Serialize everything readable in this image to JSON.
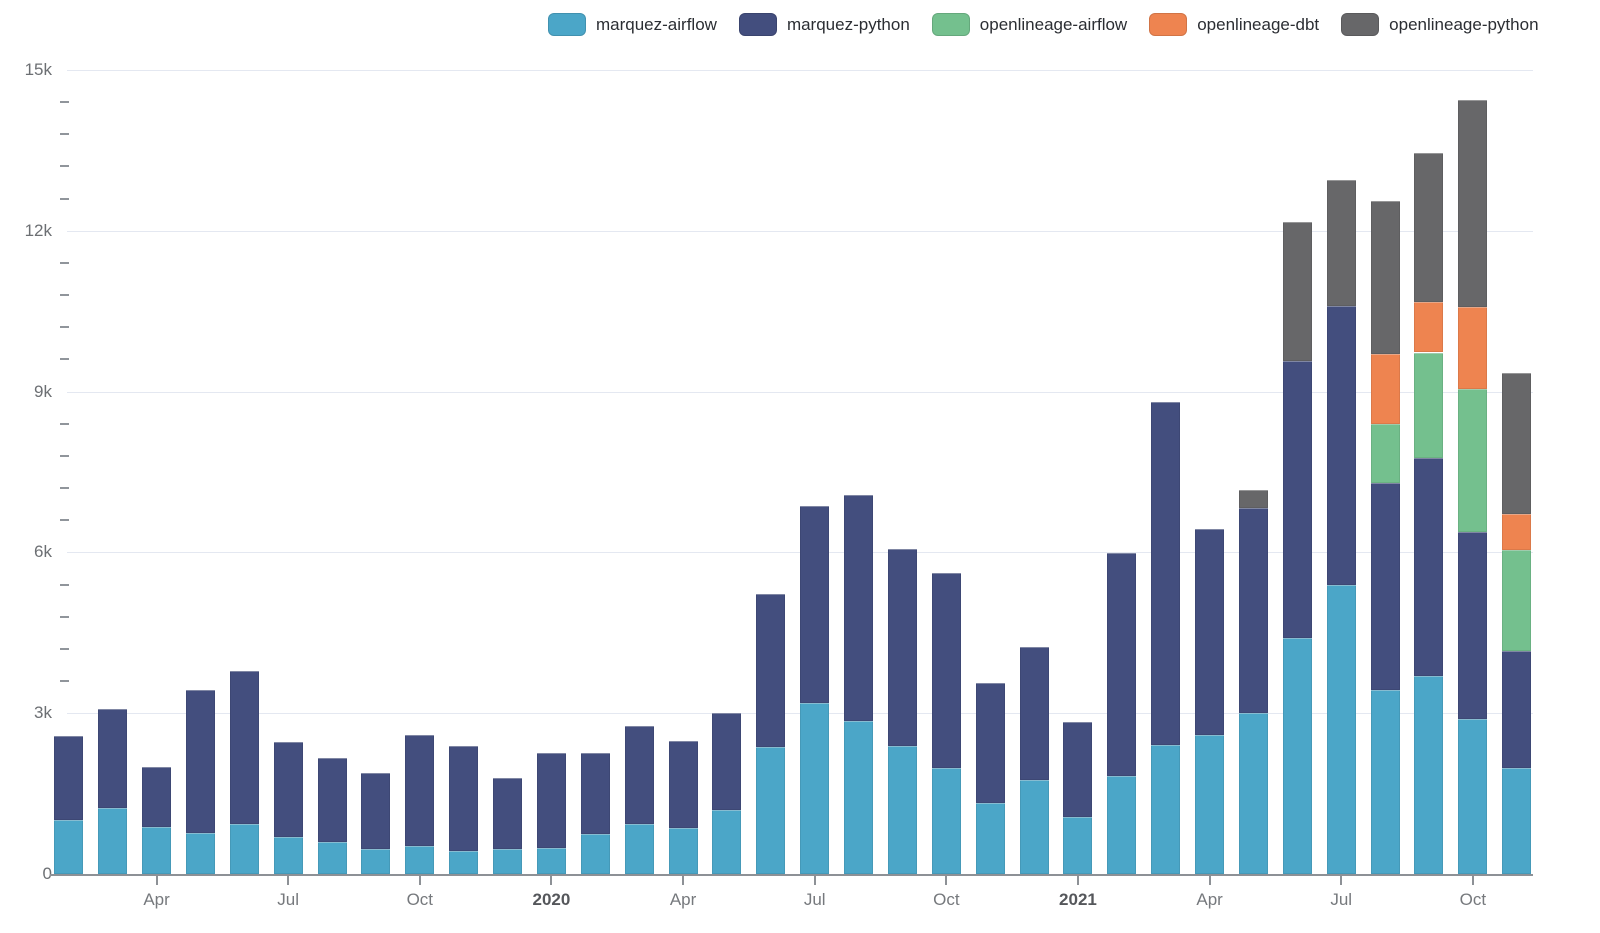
{
  "legend": {
    "items": [
      {
        "label": "marquez-airflow",
        "color": "#4ba6c8"
      },
      {
        "label": "marquez-python",
        "color": "#434e7e"
      },
      {
        "label": "openlineage-airflow",
        "color": "#74c08e"
      },
      {
        "label": "openlineage-dbt",
        "color": "#ee8450"
      },
      {
        "label": "openlineage-python",
        "color": "#676769"
      }
    ]
  },
  "chart_data": {
    "type": "bar",
    "stacked": true,
    "title": "",
    "xlabel": "",
    "ylabel": "",
    "ylim": [
      0,
      15000
    ],
    "grid": true,
    "legend_position": "top",
    "y_ticks": [
      {
        "value": 0,
        "label": "0"
      },
      {
        "value": 3000,
        "label": "3k"
      },
      {
        "value": 6000,
        "label": "6k"
      },
      {
        "value": 9000,
        "label": "9k"
      },
      {
        "value": 12000,
        "label": "12k"
      },
      {
        "value": 15000,
        "label": "15k"
      }
    ],
    "y_minor_step": 600,
    "categories": [
      "2019-02",
      "2019-03",
      "2019-04",
      "2019-05",
      "2019-06",
      "2019-07",
      "2019-08",
      "2019-09",
      "2019-10",
      "2019-11",
      "2019-12",
      "2020-01",
      "2020-02",
      "2020-03",
      "2020-04",
      "2020-05",
      "2020-06",
      "2020-07",
      "2020-08",
      "2020-09",
      "2020-10",
      "2020-11",
      "2020-12",
      "2021-01",
      "2021-02",
      "2021-03",
      "2021-04",
      "2021-05",
      "2021-06",
      "2021-07",
      "2021-08",
      "2021-09",
      "2021-10",
      "2021-11"
    ],
    "x_tick_labels": [
      {
        "index": 2,
        "label": "Apr",
        "bold": false
      },
      {
        "index": 5,
        "label": "Jul",
        "bold": false
      },
      {
        "index": 8,
        "label": "Oct",
        "bold": false
      },
      {
        "index": 11,
        "label": "2020",
        "bold": true
      },
      {
        "index": 14,
        "label": "Apr",
        "bold": false
      },
      {
        "index": 17,
        "label": "Jul",
        "bold": false
      },
      {
        "index": 20,
        "label": "Oct",
        "bold": false
      },
      {
        "index": 23,
        "label": "2021",
        "bold": true
      },
      {
        "index": 26,
        "label": "Apr",
        "bold": false
      },
      {
        "index": 29,
        "label": "Jul",
        "bold": false
      },
      {
        "index": 32,
        "label": "Oct",
        "bold": false
      }
    ],
    "series": [
      {
        "name": "marquez-airflow",
        "color": "#4ba6c8",
        "values": [
          1000,
          1240,
          870,
          770,
          940,
          690,
          590,
          460,
          520,
          430,
          470,
          490,
          740,
          940,
          860,
          1190,
          2370,
          3190,
          2860,
          2390,
          1980,
          1330,
          1750,
          1060,
          1820,
          2410,
          2600,
          3000,
          4400,
          5400,
          3440,
          3690,
          2900,
          1970
        ]
      },
      {
        "name": "marquez-python",
        "color": "#434e7e",
        "values": [
          1570,
          1840,
          1120,
          2670,
          2840,
          1770,
          1570,
          1430,
          2070,
          1950,
          1320,
          1760,
          1520,
          1820,
          1630,
          1810,
          2850,
          3670,
          4210,
          3670,
          3640,
          2230,
          2490,
          1780,
          4160,
          6390,
          3840,
          3820,
          5170,
          5200,
          3850,
          4070,
          3490,
          2200
        ]
      },
      {
        "name": "openlineage-airflow",
        "color": "#74c08e",
        "values": [
          0,
          0,
          0,
          0,
          0,
          0,
          0,
          0,
          0,
          0,
          0,
          0,
          0,
          0,
          0,
          0,
          0,
          0,
          0,
          0,
          0,
          0,
          0,
          0,
          0,
          0,
          0,
          0,
          0,
          0,
          1110,
          1970,
          2650,
          1870
        ]
      },
      {
        "name": "openlineage-dbt",
        "color": "#ee8450",
        "values": [
          0,
          0,
          0,
          0,
          0,
          0,
          0,
          0,
          0,
          0,
          0,
          0,
          0,
          0,
          0,
          0,
          0,
          0,
          0,
          0,
          0,
          0,
          0,
          0,
          0,
          0,
          0,
          0,
          0,
          0,
          1310,
          950,
          1530,
          670
        ]
      },
      {
        "name": "openlineage-python",
        "color": "#676769",
        "values": [
          0,
          0,
          0,
          0,
          0,
          0,
          0,
          0,
          0,
          0,
          0,
          0,
          0,
          0,
          0,
          0,
          0,
          0,
          0,
          0,
          0,
          0,
          0,
          0,
          0,
          0,
          0,
          340,
          2600,
          2350,
          2850,
          2770,
          3870,
          2630
        ]
      }
    ]
  }
}
